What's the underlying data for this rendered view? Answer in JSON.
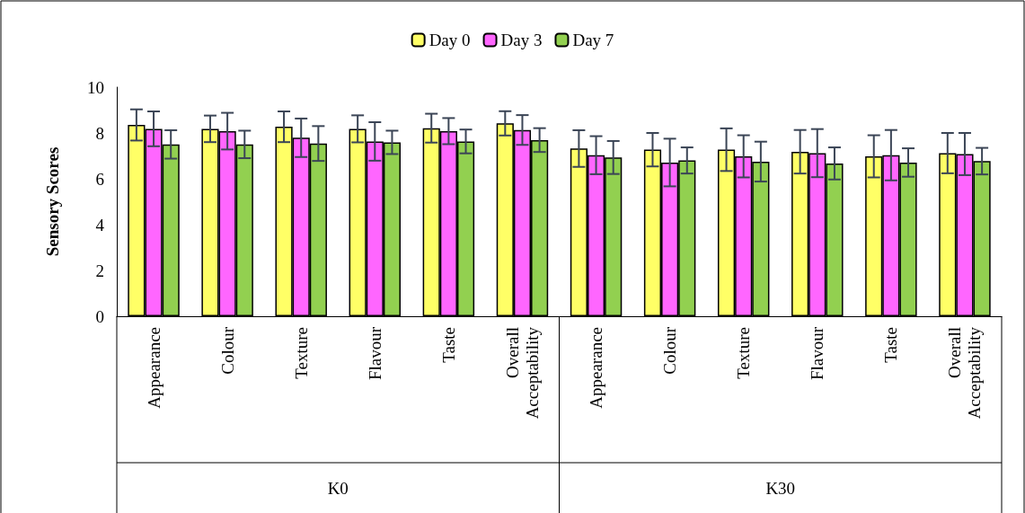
{
  "chart_data": {
    "type": "bar",
    "ylabel": "Sensory Scores",
    "categories": [
      "Appearance",
      "Colour",
      "Texture",
      "Flavour",
      "Taste",
      "Overall Acceptability",
      "Appearance",
      "Colour",
      "Texture",
      "Flavour",
      "Taste",
      "Overall Acceptability"
    ],
    "series": [
      {
        "name": "Day 0",
        "color": "#ffff66",
        "values": [
          8.35,
          8.18,
          8.27,
          8.18,
          8.21,
          8.42,
          7.32,
          7.27,
          7.27,
          7.18,
          6.98,
          7.12
        ],
        "errors": [
          0.68,
          0.58,
          0.67,
          0.59,
          0.63,
          0.53,
          0.8,
          0.73,
          0.93,
          0.95,
          0.92,
          0.88
        ]
      },
      {
        "name": "Day 3",
        "color": "#ff66ff",
        "values": [
          8.18,
          8.08,
          7.79,
          7.63,
          8.08,
          8.13,
          7.03,
          6.71,
          6.98,
          7.12,
          7.03,
          7.08
        ],
        "errors": [
          0.76,
          0.8,
          0.84,
          0.84,
          0.57,
          0.65,
          0.83,
          1.04,
          0.92,
          1.05,
          1.1,
          0.92
        ]
      },
      {
        "name": "Day 7",
        "color": "#92d050",
        "values": [
          7.5,
          7.5,
          7.54,
          7.59,
          7.63,
          7.69,
          6.93,
          6.8,
          6.75,
          6.67,
          6.71,
          6.77
        ],
        "errors": [
          0.62,
          0.6,
          0.76,
          0.51,
          0.52,
          0.52,
          0.72,
          0.57,
          0.87,
          0.7,
          0.62,
          0.58
        ]
      }
    ],
    "annotations": [
      "K0",
      "K30"
    ],
    "ylim": [
      0,
      10
    ],
    "yticks": [
      0,
      2,
      4,
      6,
      8,
      10
    ],
    "grid": false,
    "legend": "top"
  }
}
